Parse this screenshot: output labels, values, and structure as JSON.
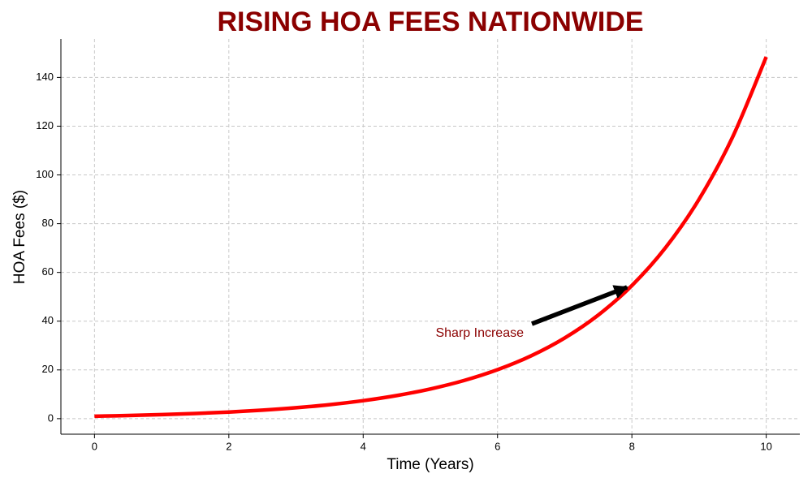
{
  "chart_data": {
    "type": "line",
    "title": "RISING HOA FEES NATIONWIDE",
    "xlabel": "Time (Years)",
    "ylabel": "HOA Fees ($)",
    "annotation": "Sharp Increase",
    "x": [
      0,
      0.5,
      1,
      1.5,
      2,
      2.5,
      3,
      3.5,
      4,
      4.5,
      5,
      5.5,
      6,
      6.5,
      7,
      7.5,
      8,
      8.5,
      9,
      9.5,
      10
    ],
    "series": [
      {
        "color": "#ff0000",
        "values": [
          1.0,
          1.28,
          1.65,
          2.12,
          2.72,
          3.49,
          4.48,
          5.75,
          7.39,
          9.49,
          12.18,
          15.64,
          20.09,
          25.79,
          33.12,
          42.52,
          54.6,
          70.11,
          90.02,
          115.58,
          148.41
        ]
      }
    ],
    "xlim": [
      -0.5,
      10.5
    ],
    "xticks": [
      0,
      2,
      4,
      6,
      8,
      10
    ],
    "ylim": [
      -6.37,
      155.78
    ],
    "yticks": [
      0,
      20,
      40,
      60,
      80,
      100,
      120,
      140
    ],
    "grid": true
  }
}
